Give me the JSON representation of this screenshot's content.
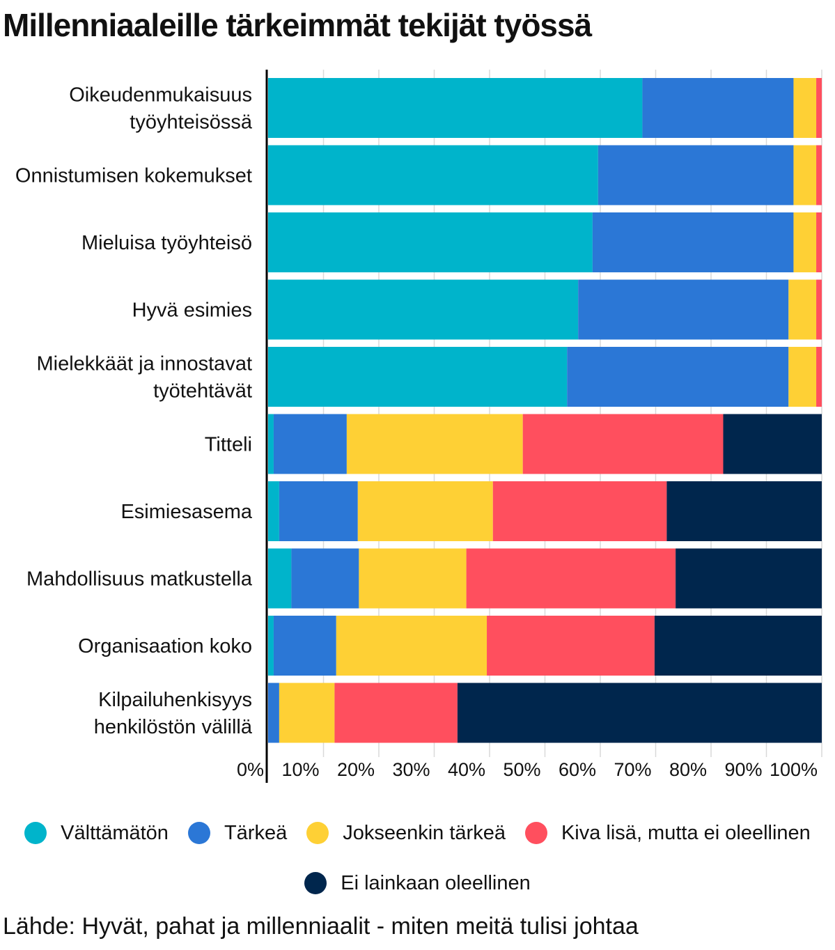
{
  "title": "Millenniaaleille tärkeimmät tekijät työssä",
  "source": "Lähde: Hyvät, pahat ja millenniaalit - miten meitä tulisi johtaa",
  "chart_data": {
    "type": "bar",
    "orientation": "horizontal",
    "stacked": true,
    "title": "Millenniaaleille tärkeimmät tekijät työssä",
    "xlim": [
      0,
      100
    ],
    "x_ticks": [
      "0%",
      "10%",
      "20%",
      "30%",
      "40%",
      "50%",
      "60%",
      "70%",
      "80%",
      "90%",
      "100%"
    ],
    "grid": "vertical",
    "legend_position": "bottom",
    "categories": [
      [
        "Oikeudenmukaisuus",
        "työyhteisössä"
      ],
      [
        "Onnistumisen kokemukset"
      ],
      [
        "Mieluisa työyhteisö"
      ],
      [
        "Hyvä esimies"
      ],
      [
        "Mielekkäät ja innostavat",
        "työtehtävät"
      ],
      [
        "Titteli"
      ],
      [
        "Esimiesasema"
      ],
      [
        "Mahdollisuus matkustella"
      ],
      [
        "Organisaation koko"
      ],
      [
        "Kilpailuhenkisyys",
        "henkilöstön välillä"
      ]
    ],
    "series": [
      {
        "name": "Välttämätön",
        "color": "#00b4cb",
        "values": [
          67.6,
          59.6,
          58.6,
          56.0,
          54.0,
          1.0,
          2.0,
          4.2,
          1.0,
          0.0
        ]
      },
      {
        "name": "Tärkeä",
        "color": "#2b77d6",
        "values": [
          27.3,
          35.3,
          36.3,
          38.0,
          40.0,
          13.2,
          14.2,
          12.2,
          11.3,
          2.0
        ]
      },
      {
        "name": "Jokseenkin tärkeä",
        "color": "#fed035",
        "values": [
          4.1,
          4.1,
          4.1,
          5.0,
          5.0,
          31.8,
          24.4,
          19.4,
          27.2,
          10.0
        ]
      },
      {
        "name": "Kiva lisä, mutta ei oleellinen",
        "color": "#ff4f5e",
        "values": [
          1.0,
          1.0,
          1.0,
          1.0,
          1.0,
          36.2,
          31.4,
          37.8,
          30.3,
          22.2
        ]
      },
      {
        "name": "Ei lainkaan oleellinen",
        "color": "#00264d",
        "values": [
          0.0,
          0.0,
          0.0,
          0.0,
          0.0,
          17.8,
          28.0,
          26.4,
          30.2,
          65.8
        ]
      }
    ]
  }
}
